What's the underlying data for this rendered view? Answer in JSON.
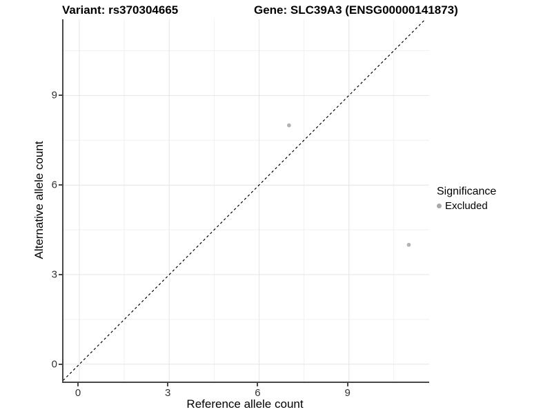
{
  "title": {
    "variant": "Variant: rs370304665",
    "gene": "Gene: SLC39A3 (ENSG00000141873)"
  },
  "chart_data": {
    "type": "scatter",
    "title_left": "Variant: rs370304665",
    "title_right": "Gene: SLC39A3 (ENSG00000141873)",
    "xlabel": "Reference allele count",
    "ylabel": "Alternative allele count",
    "xlim": [
      -0.53,
      11.68
    ],
    "ylim": [
      -0.58,
      11.55
    ],
    "x_ticks": [
      0,
      3,
      6,
      9
    ],
    "y_ticks": [
      0,
      3,
      6,
      9
    ],
    "x_minor_ticks": [
      1.5,
      4.5,
      7.5,
      10.5
    ],
    "y_minor_ticks": [
      1.5,
      4.5,
      7.5,
      10.5
    ],
    "grid": true,
    "identity_line": {
      "equation": "y = x",
      "style": "dashed",
      "color": "#000000"
    },
    "series": [
      {
        "name": "Excluded",
        "color": "#b3b3b3",
        "points": [
          {
            "x": 7,
            "y": 8
          },
          {
            "x": 11,
            "y": 4
          }
        ]
      }
    ],
    "legend": {
      "position": "right",
      "title": "Significance",
      "items": [
        {
          "label": "Excluded",
          "color": "#a9a9a9"
        }
      ]
    }
  },
  "colors": {
    "background": "#ffffff",
    "axis_line": "#474747",
    "grid_major": "#e4e4e4",
    "grid_minor": "#f1f1f1",
    "point": "#b3b3b3",
    "legend_dot": "#a9a9a9",
    "identity_line": "#000000",
    "tick_text": "#303030",
    "title_text": "#000000"
  }
}
